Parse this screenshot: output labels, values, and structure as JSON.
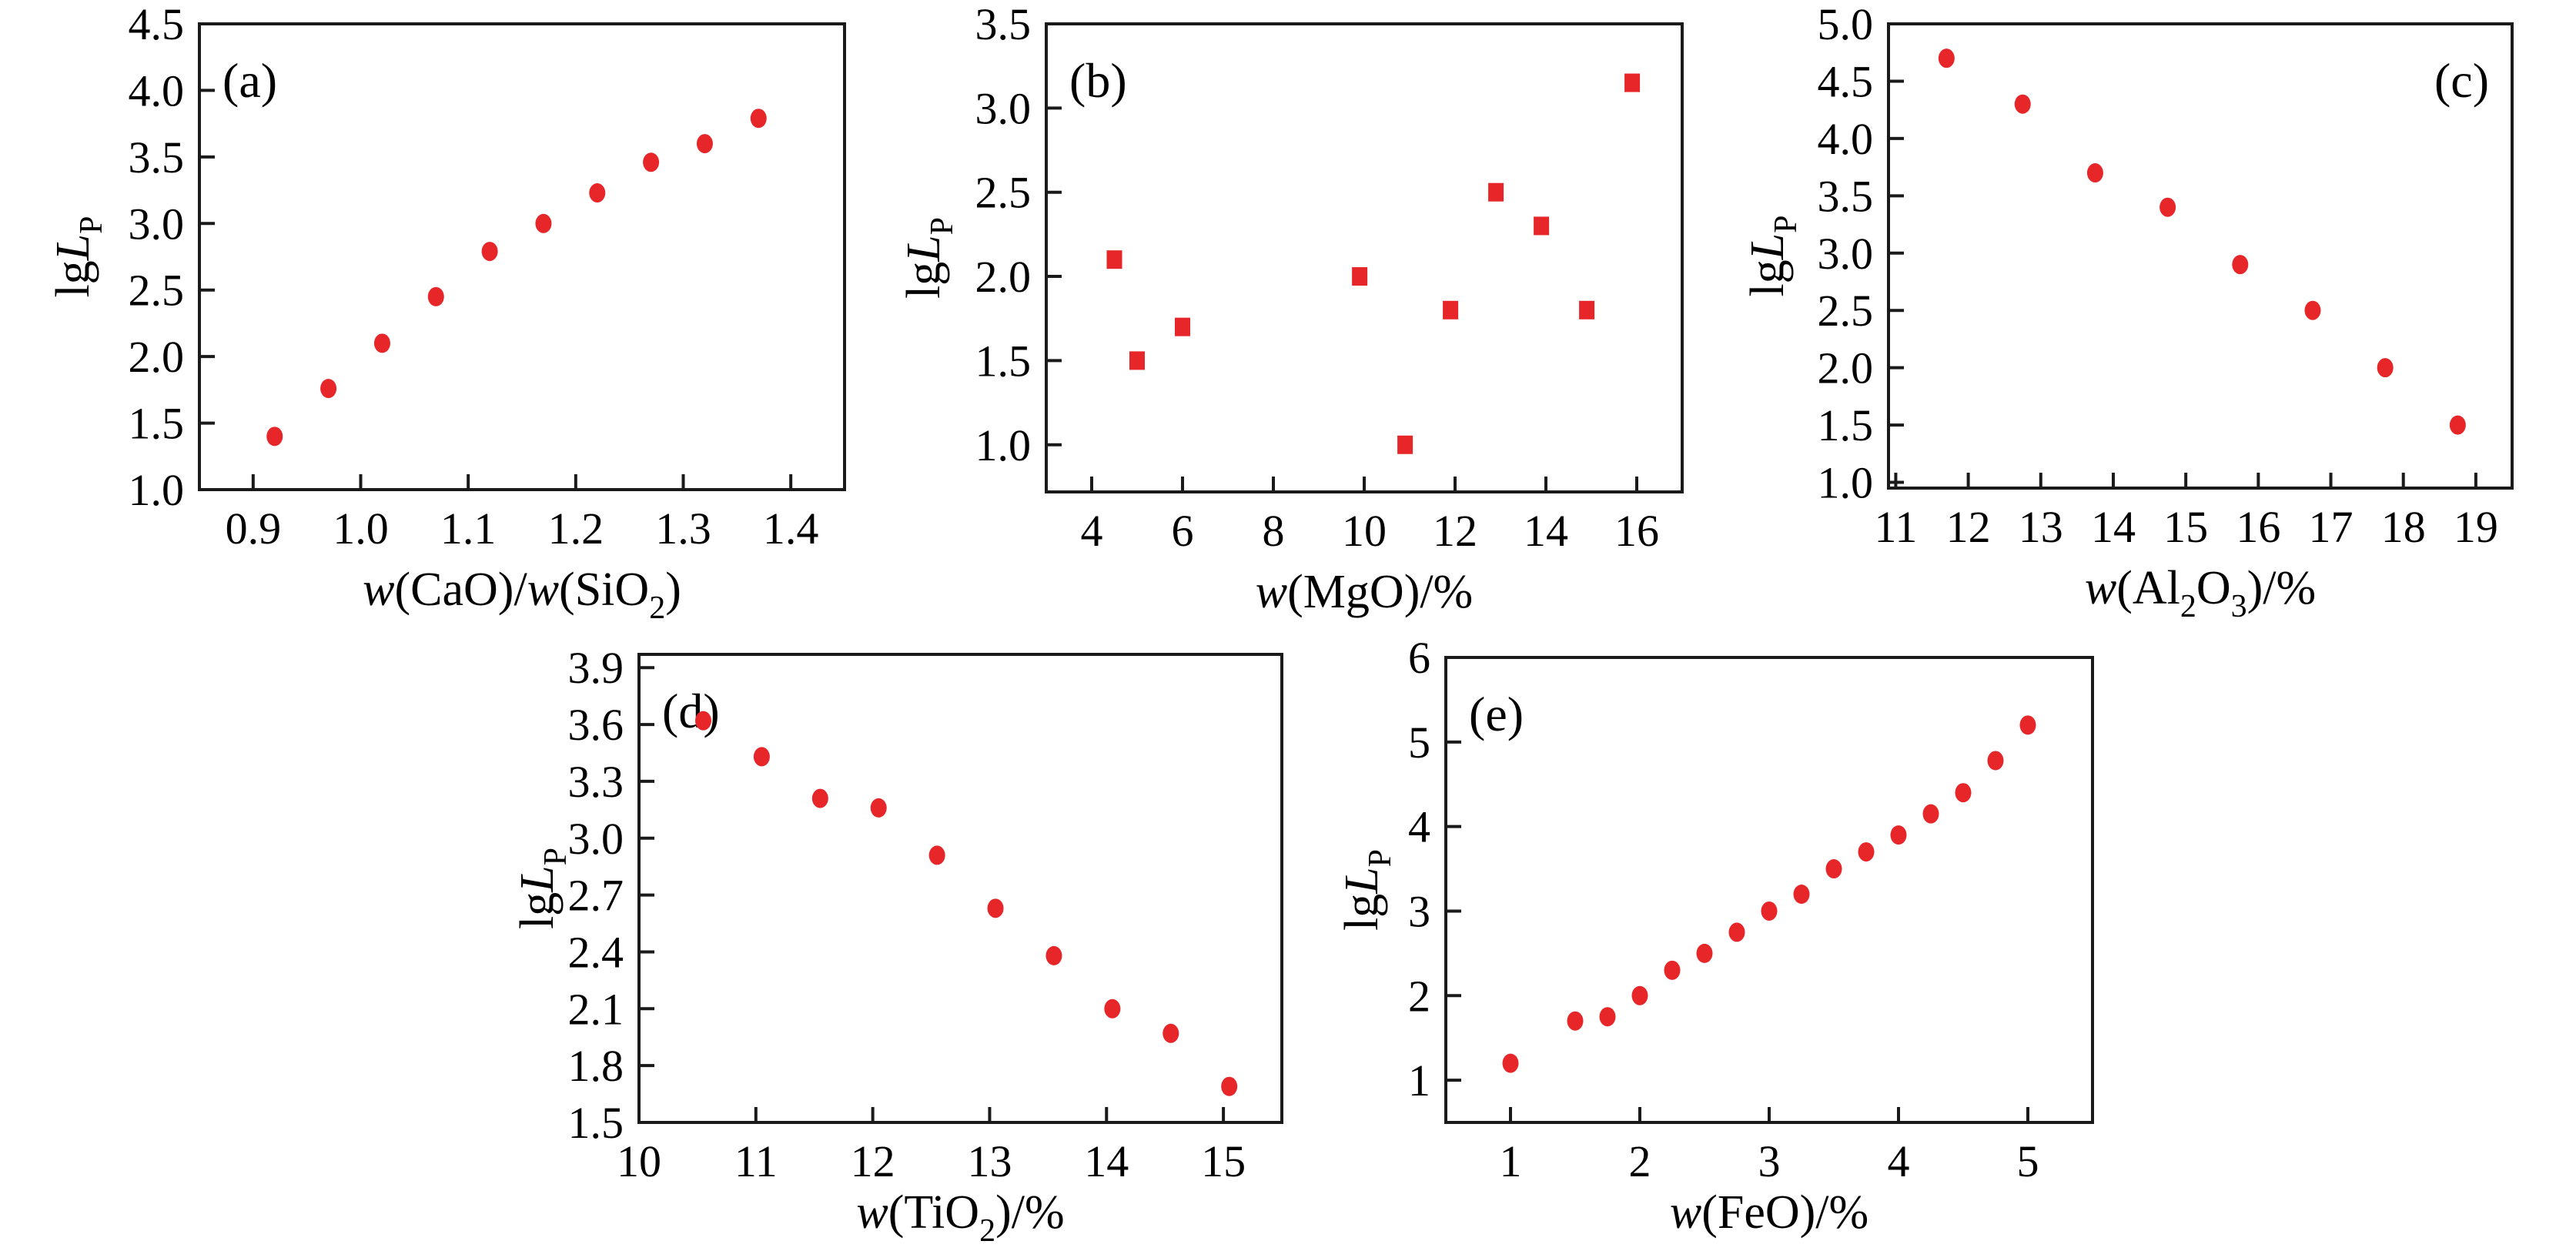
{
  "figure": {
    "background": "#ffffff",
    "axis_color": "#1a1a1a",
    "text_color": "#000000",
    "marker_color": "#e7262a"
  },
  "chart_data": [
    {
      "id": "a",
      "type": "scatter",
      "panel_label": "(a)",
      "panel_label_pos": "top-left",
      "marker": {
        "shape": "ellipse",
        "rx": 10.5,
        "ry": 12.5
      },
      "xlabel": "*w*(CaO)/*w*(SiO_2_)",
      "ylabel": "lg*L*_P_",
      "xlim": [
        0.85,
        1.45
      ],
      "ylim": [
        1.0,
        4.5
      ],
      "grid": false,
      "xtick_values": [
        0.9,
        1.0,
        1.1,
        1.2,
        1.3,
        1.4
      ],
      "xtick_labels": [
        "0.9",
        "1.0",
        "1.1",
        "1.2",
        "1.3",
        "1.4"
      ],
      "ytick_values": [
        1.0,
        1.5,
        2.0,
        2.5,
        3.0,
        3.5,
        4.0,
        4.5
      ],
      "ytick_labels": [
        "1.0",
        "1.5",
        "2.0",
        "2.5",
        "3.0",
        "3.5",
        "4.0",
        "4.5"
      ],
      "x": [
        0.92,
        0.97,
        1.02,
        1.07,
        1.12,
        1.17,
        1.22,
        1.27,
        1.32,
        1.37
      ],
      "y": [
        1.4,
        1.76,
        2.1,
        2.45,
        2.79,
        3.0,
        3.23,
        3.46,
        3.6,
        3.79
      ]
    },
    {
      "id": "b",
      "type": "scatter",
      "panel_label": "(b)",
      "panel_label_pos": "top-left",
      "marker": {
        "shape": "square",
        "w": 20,
        "h": 24
      },
      "xlabel": "*w*(MgO)/%",
      "ylabel": "lg*L*_P_",
      "xlim": [
        3.0,
        17.0
      ],
      "ylim": [
        0.72,
        3.5
      ],
      "grid": false,
      "xtick_values": [
        4,
        6,
        8,
        10,
        12,
        14,
        16
      ],
      "xtick_labels": [
        "4",
        "6",
        "8",
        "10",
        "12",
        "14",
        "16"
      ],
      "ytick_values": [
        1.0,
        1.5,
        2.0,
        2.5,
        3.0,
        3.5
      ],
      "ytick_labels": [
        "1.0",
        "1.5",
        "2.0",
        "2.5",
        "3.0",
        "3.5"
      ],
      "x": [
        4.5,
        5.0,
        6.0,
        9.9,
        10.9,
        11.9,
        12.9,
        13.9,
        14.9,
        15.9
      ],
      "y": [
        2.1,
        1.5,
        1.7,
        2.0,
        1.0,
        1.8,
        2.5,
        2.3,
        1.8,
        3.15
      ]
    },
    {
      "id": "c",
      "type": "scatter",
      "panel_label": "(c)",
      "panel_label_pos": "top-right",
      "marker": {
        "shape": "ellipse",
        "rx": 10.5,
        "ry": 12.5
      },
      "xlabel": "*w*(Al_2_O_3_)/%",
      "ylabel": "lg*L*_P_",
      "xlim": [
        10.9,
        19.5
      ],
      "ylim": [
        0.95,
        5.0
      ],
      "grid": false,
      "xtick_values": [
        11,
        12,
        13,
        14,
        15,
        16,
        17,
        18,
        19
      ],
      "xtick_labels": [
        "11",
        "12",
        "13",
        "14",
        "15",
        "16",
        "17",
        "18",
        "19"
      ],
      "ytick_values": [
        1.0,
        1.5,
        2.0,
        2.5,
        3.0,
        3.5,
        4.0,
        4.5,
        5.0
      ],
      "ytick_labels": [
        "1.0",
        "1.5",
        "2.0",
        "2.5",
        "3.0",
        "3.5",
        "4.0",
        "4.5",
        "5.0"
      ],
      "x": [
        11.7,
        12.75,
        13.75,
        14.75,
        15.75,
        16.75,
        17.75,
        18.75
      ],
      "y": [
        4.7,
        4.3,
        3.7,
        3.4,
        2.9,
        2.5,
        2.0,
        1.5
      ]
    },
    {
      "id": "d",
      "type": "scatter",
      "panel_label": "(d)",
      "panel_label_pos": "top-left",
      "marker": {
        "shape": "ellipse",
        "rx": 10.5,
        "ry": 12.5
      },
      "xlabel": "*w*(TiO_2_)/%",
      "ylabel": "lg*L*_P_",
      "xlim": [
        10.0,
        15.5
      ],
      "ylim": [
        1.5,
        3.97
      ],
      "grid": false,
      "xtick_values": [
        10,
        11,
        12,
        13,
        14,
        15
      ],
      "xtick_labels": [
        "10",
        "11",
        "12",
        "13",
        "14",
        "15"
      ],
      "ytick_values": [
        1.5,
        1.8,
        2.1,
        2.4,
        2.7,
        3.0,
        3.3,
        3.6,
        3.9
      ],
      "ytick_labels": [
        "1.5",
        "1.8",
        "2.1",
        "2.4",
        "2.7",
        "3.0",
        "3.3",
        "3.6",
        "3.9"
      ],
      "x": [
        10.55,
        11.05,
        11.55,
        12.05,
        12.55,
        13.05,
        13.55,
        14.05,
        14.55,
        15.05
      ],
      "y": [
        3.62,
        3.43,
        3.21,
        3.16,
        2.91,
        2.63,
        2.38,
        2.1,
        1.97,
        1.69
      ]
    },
    {
      "id": "e",
      "type": "scatter",
      "panel_label": "(e)",
      "panel_label_pos": "top-left",
      "marker": {
        "shape": "ellipse",
        "rx": 10.5,
        "ry": 12.5
      },
      "xlabel": "*w*(FeO)/%",
      "ylabel": "lg*L*_P_",
      "xlim": [
        0.5,
        5.5
      ],
      "ylim": [
        0.5,
        6.0
      ],
      "grid": false,
      "xtick_values": [
        1,
        2,
        3,
        4,
        5
      ],
      "xtick_labels": [
        "1",
        "2",
        "3",
        "4",
        "5"
      ],
      "ytick_values": [
        1,
        2,
        3,
        4,
        5,
        6
      ],
      "ytick_labels": [
        "1",
        "2",
        "3",
        "4",
        "5",
        "6"
      ],
      "x": [
        1.0,
        1.5,
        1.75,
        2.0,
        2.25,
        2.5,
        2.75,
        3.0,
        3.25,
        3.5,
        3.75,
        4.0,
        4.25,
        4.5,
        4.75,
        5.0
      ],
      "y": [
        1.2,
        1.7,
        1.75,
        2.0,
        2.3,
        2.5,
        2.75,
        3.0,
        3.2,
        3.5,
        3.7,
        3.9,
        4.15,
        4.4,
        4.78,
        5.2
      ]
    }
  ]
}
